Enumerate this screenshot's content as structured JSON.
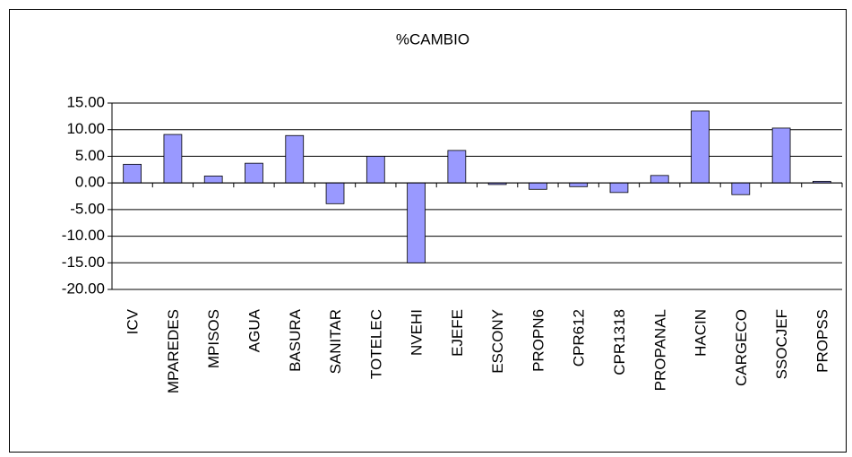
{
  "chart_data": {
    "type": "bar",
    "title": "%CAMBIO",
    "categories": [
      "ICV",
      "MPAREDES",
      "MPISOS",
      "AGUA",
      "BASURA",
      "SANITAR",
      "TOTELEC",
      "NVEHI",
      "EJEFE",
      "ESCONY",
      "PROPN6",
      "CPR612",
      "CPR1318",
      "PROPANAL",
      "HACIN",
      "CARGECO",
      "SSOCJEF",
      "PROPSS"
    ],
    "values": [
      3.5,
      9.1,
      1.3,
      3.7,
      8.9,
      -3.9,
      5.0,
      -15.0,
      6.1,
      -0.3,
      -1.2,
      -0.7,
      -1.8,
      1.4,
      13.5,
      -2.2,
      10.3,
      0.3
    ],
    "color": "#9999ff",
    "ylim": [
      -20,
      15
    ],
    "yticks": [
      {
        "value": -20,
        "label": "-20.00"
      },
      {
        "value": -15,
        "label": "-15.00"
      },
      {
        "value": -10,
        "label": "-10.00"
      },
      {
        "value": -5,
        "label": "-5.00"
      },
      {
        "value": 0,
        "label": "0.00"
      },
      {
        "value": 5,
        "label": "5.00"
      },
      {
        "value": 10,
        "label": "10.00"
      },
      {
        "value": 15,
        "label": "15.00"
      }
    ],
    "grid": true
  }
}
